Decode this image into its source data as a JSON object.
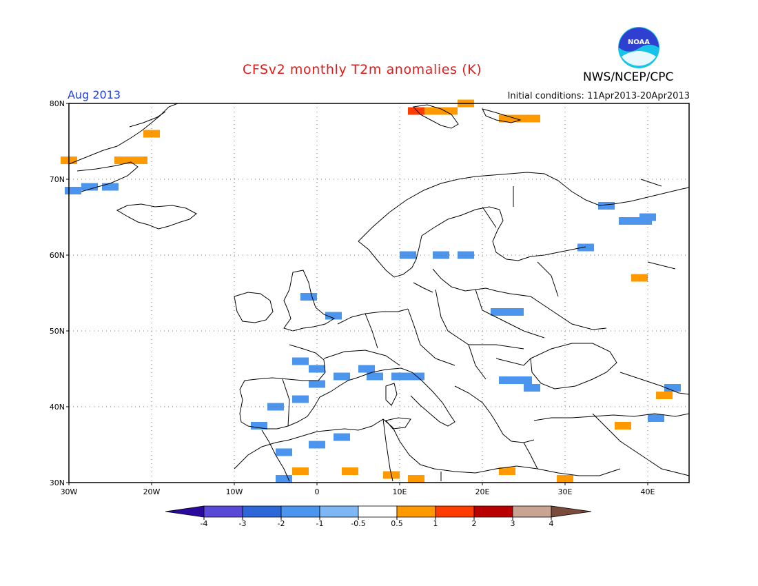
{
  "header": {
    "title": "CFSv2 monthly T2m anomalies (K)",
    "agency": "NWS/NCEP/CPC",
    "month": "Aug 2013",
    "initial_conditions": "Initial conditions: 11Apr2013-20Apr2013",
    "logo_text": "NOAA"
  },
  "map": {
    "lon_range": [
      -30,
      45
    ],
    "lat_range": [
      30,
      80
    ],
    "lon_labels": [
      "30W",
      "20W",
      "10W",
      "0",
      "10E",
      "20E",
      "30E",
      "40E"
    ],
    "lat_labels": [
      "30N",
      "40N",
      "50N",
      "60N",
      "70N",
      "80N"
    ],
    "grid": true,
    "colors": {
      "land_outline": "#000000",
      "grid": "#777777"
    }
  },
  "anomaly_cells": [
    {
      "lon": -30,
      "lat": 72.5,
      "value": 0.7
    },
    {
      "lon": -29.5,
      "lat": 68.5,
      "value": -1.5
    },
    {
      "lon": -27.5,
      "lat": 69,
      "value": -1
    },
    {
      "lon": -25,
      "lat": 69,
      "value": -1
    },
    {
      "lon": -23.5,
      "lat": 72.5,
      "value": 0.7
    },
    {
      "lon": -21.5,
      "lat": 72.5,
      "value": 0.7
    },
    {
      "lon": -20,
      "lat": 76,
      "value": 0.7
    },
    {
      "lon": 12,
      "lat": 79,
      "value": 1.5
    },
    {
      "lon": 14,
      "lat": 79,
      "value": 0.7
    },
    {
      "lon": 16,
      "lat": 79,
      "value": 0.7
    },
    {
      "lon": 18,
      "lat": 80,
      "value": 0.7
    },
    {
      "lon": 23,
      "lat": 78,
      "value": 0.7
    },
    {
      "lon": 25,
      "lat": 78,
      "value": 0.7
    },
    {
      "lon": 26,
      "lat": 78,
      "value": 0.7
    },
    {
      "lon": 35,
      "lat": 66.5,
      "value": -1.5
    },
    {
      "lon": 37.5,
      "lat": 64.5,
      "value": -1
    },
    {
      "lon": 39.5,
      "lat": 64.5,
      "value": -1
    },
    {
      "lon": 40,
      "lat": 65,
      "value": -1.5
    },
    {
      "lon": 32.5,
      "lat": 61,
      "value": -1
    },
    {
      "lon": 39,
      "lat": 57,
      "value": 0.7
    },
    {
      "lon": 11,
      "lat": 60,
      "value": -1
    },
    {
      "lon": 15,
      "lat": 60,
      "value": -1
    },
    {
      "lon": 18,
      "lat": 60,
      "value": -1
    },
    {
      "lon": -1,
      "lat": 54.5,
      "value": -1
    },
    {
      "lon": 2,
      "lat": 52,
      "value": -1
    },
    {
      "lon": 22,
      "lat": 52.5,
      "value": -1
    },
    {
      "lon": 24,
      "lat": 52.5,
      "value": -1
    },
    {
      "lon": -2,
      "lat": 46,
      "value": -1
    },
    {
      "lon": 0,
      "lat": 45,
      "value": -1
    },
    {
      "lon": 3,
      "lat": 44,
      "value": -1
    },
    {
      "lon": 6,
      "lat": 45,
      "value": -1
    },
    {
      "lon": 7,
      "lat": 44,
      "value": -1.5
    },
    {
      "lon": 10,
      "lat": 44,
      "value": -1
    },
    {
      "lon": 12,
      "lat": 44,
      "value": -1
    },
    {
      "lon": 23,
      "lat": 43.5,
      "value": -1
    },
    {
      "lon": 25,
      "lat": 43.5,
      "value": -1
    },
    {
      "lon": 26,
      "lat": 42.5,
      "value": -1
    },
    {
      "lon": 43,
      "lat": 42.5,
      "value": -1
    },
    {
      "lon": 42,
      "lat": 41.5,
      "value": 0.7
    },
    {
      "lon": 41,
      "lat": 38.5,
      "value": -1
    },
    {
      "lon": 37,
      "lat": 37.5,
      "value": 0.7
    },
    {
      "lon": 30,
      "lat": 30.5,
      "value": 0.7
    },
    {
      "lon": 0,
      "lat": 43,
      "value": -1.5
    },
    {
      "lon": -5,
      "lat": 40,
      "value": -1.5
    },
    {
      "lon": -2,
      "lat": 41,
      "value": -1.5
    },
    {
      "lon": -7,
      "lat": 37.5,
      "value": -1
    },
    {
      "lon": 0,
      "lat": 35,
      "value": -1
    },
    {
      "lon": 3,
      "lat": 36,
      "value": -1
    },
    {
      "lon": -4,
      "lat": 34,
      "value": -1
    },
    {
      "lon": -4,
      "lat": 30.5,
      "value": -1
    },
    {
      "lon": -2,
      "lat": 31.5,
      "value": 0.7
    },
    {
      "lon": 4,
      "lat": 31.5,
      "value": 0.7
    },
    {
      "lon": 9,
      "lat": 31,
      "value": 0.7
    },
    {
      "lon": 12,
      "lat": 30.5,
      "value": 0.7
    },
    {
      "lon": 23,
      "lat": 31.5,
      "value": 0.7
    }
  ],
  "legend": {
    "ticks": [
      "-4",
      "-3",
      "-2",
      "-1",
      "-0.5",
      "0.5",
      "1",
      "2",
      "3",
      "4"
    ],
    "colors": [
      "#2a0a9c",
      "#5a48d6",
      "#2e68d8",
      "#4c95ee",
      "#7db8f4",
      "#ffffff",
      "#ff9900",
      "#ff3c00",
      "#b80000",
      "#c9a493",
      "#7a4a3a"
    ]
  }
}
